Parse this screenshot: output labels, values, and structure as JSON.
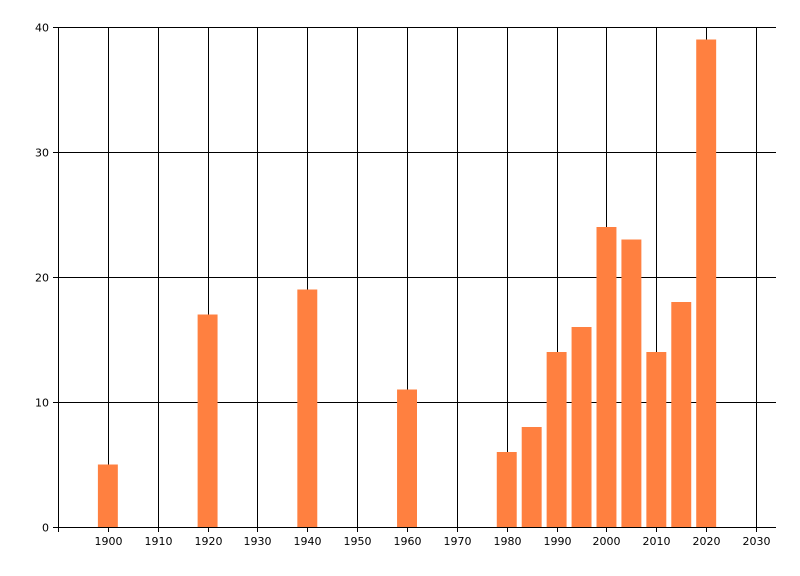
{
  "chart_data": {
    "type": "bar",
    "title": "",
    "xlabel": "",
    "ylabel": "",
    "x": [
      1900,
      1920,
      1940,
      1960,
      1980,
      1985,
      1990,
      1995,
      2000,
      2005,
      2010,
      2015,
      2020
    ],
    "values": [
      5,
      17,
      19,
      11,
      6,
      8,
      14,
      16,
      24,
      23,
      14,
      18,
      39
    ],
    "xlim": [
      1890,
      2034
    ],
    "ylim": [
      0,
      40
    ],
    "xticks": [
      1900,
      1910,
      1920,
      1930,
      1940,
      1950,
      1960,
      1970,
      1980,
      1990,
      2000,
      2010,
      2020,
      2030
    ],
    "yticks": [
      0,
      10,
      20,
      30,
      40
    ],
    "bar_width_years": 4,
    "grid": true,
    "legend": "none",
    "colors": {
      "bar": "#ff8040",
      "grid": "#000000",
      "axis": "#000000",
      "background": "#ffffff"
    }
  }
}
